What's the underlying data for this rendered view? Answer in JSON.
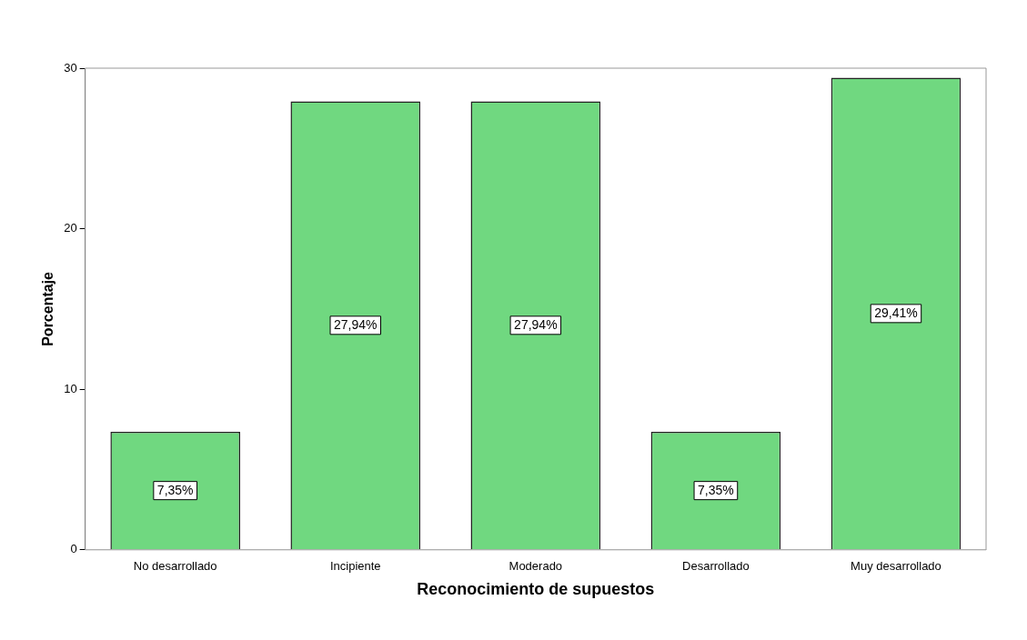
{
  "chart_data": {
    "type": "bar",
    "xlabel": "Reconocimiento de supuestos",
    "ylabel": "Porcentaje",
    "categories": [
      "No desarrollado",
      "Incipiente",
      "Moderado",
      "Desarrollado",
      "Muy desarrollado"
    ],
    "values": [
      7.35,
      27.94,
      27.94,
      7.35,
      29.41
    ],
    "value_labels": [
      "7,35%",
      "27,94%",
      "27,94%",
      "7,35%",
      "29,41%"
    ],
    "color": "#70d880",
    "ylim": [
      0,
      30
    ],
    "yticks": [
      0,
      10,
      20,
      30
    ],
    "grid": false,
    "legend": false
  }
}
